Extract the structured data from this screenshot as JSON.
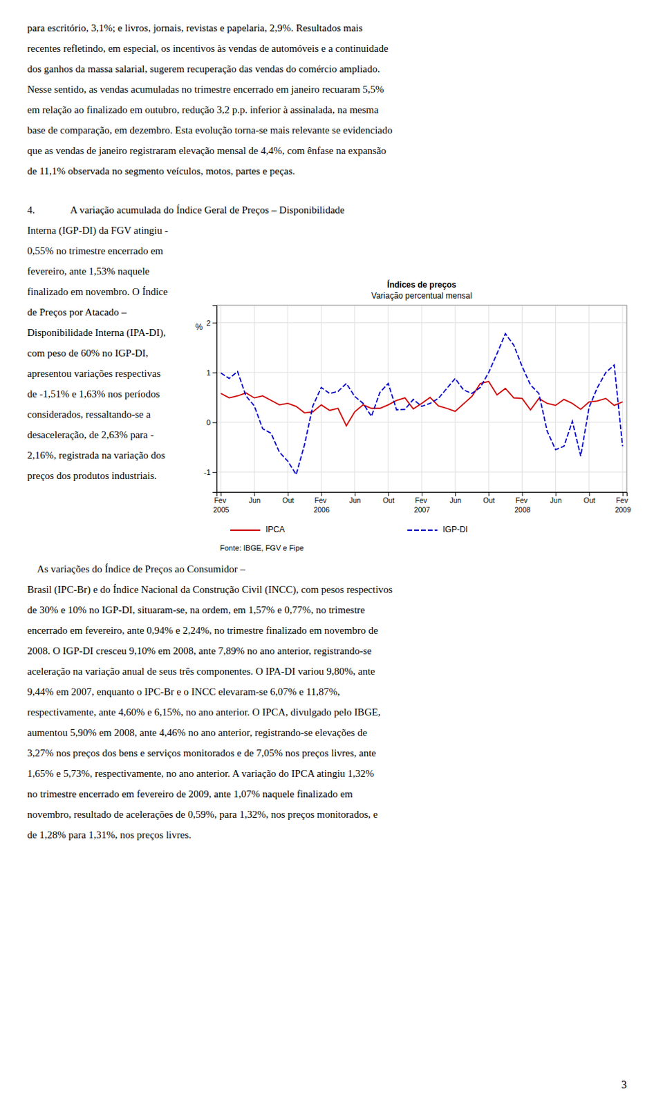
{
  "para1_lines": [
    "para escritório, 3,1%; e livros, jornais, revistas e papelaria, 2,9%. Resultados mais",
    "recentes refletindo, em especial, os incentivos às vendas de automóveis e a continuidade",
    "dos ganhos da massa salarial, sugerem recuperação das vendas do comércio ampliado.",
    "Nesse sentido, as vendas acumuladas no trimestre encerrado em janeiro recuaram 5,5%",
    "em relação ao finalizado em outubro, redução 3,2 p.p. inferior à assinalada, na mesma",
    "base de comparação, em dezembro. Esta evolução torna-se mais relevante se evidenciado",
    "que as vendas de janeiro registraram elevação mensal de 4,4%, com ênfase na expansão",
    "de 11,1% observada no segmento veículos, motos, partes e peças."
  ],
  "para4_header": "4.              A variação acumulada do Índice Geral de Preços – Disponibilidade",
  "para4_left_lines": [
    "Interna (IGP-DI) da FGV atingiu -",
    "0,55% no trimestre encerrado em",
    "fevereiro, ante 1,53% naquele",
    "finalizado em novembro. O Índice",
    "de Preços por Atacado –",
    "Disponibilidade Interna (IPA-DI),",
    "com peso de 60% no IGP-DI,",
    "apresentou variações respectivas",
    "de -1,51% e 1,63% nos períodos",
    "considerados, ressaltando-se a",
    "desaceleração, de 2,63% para -",
    "2,16%, registrada na variação dos",
    "preços dos produtos industriais."
  ],
  "para4_bottom_lines": [
    "    As variações do Índice de Preços ao Consumidor –",
    "Brasil (IPC-Br) e do Índice Nacional da Construção Civil (INCC), com pesos respectivos",
    "de 30% e 10% no IGP-DI, situaram-se, na ordem, em 1,57% e 0,77%, no trimestre",
    "encerrado em fevereiro, ante 0,94% e 2,24%, no trimestre finalizado em novembro de",
    "2008. O IGP-DI cresceu 9,10% em 2008, ante 7,89% no ano anterior, registrando-se",
    "aceleração na variação anual de seus três componentes. O IPA-DI variou 9,80%, ante",
    "9,44% em 2007, enquanto o IPC-Br e o INCC elevaram-se 6,07% e 11,87%,",
    "respectivamente, ante 4,60% e 6,15%, no ano anterior. O IPCA, divulgado pelo IBGE,",
    "aumentou 5,90% em 2008, ante 4,46% no ano anterior, registrando-se elevações de",
    "3,27% nos preços dos bens e serviços monitorados e de 7,05% nos preços livres, ante",
    "1,65% e 5,73%, respectivamente, no ano anterior. A variação do IPCA atingiu 1,32%",
    "no trimestre encerrado em fevereiro de 2009, ante 1,07% naquele finalizado em",
    "novembro, resultado de acelerações de 0,59%, para 1,32%, nos preços monitorados, e",
    "de 1,28% para 1,31%, nos preços livres."
  ],
  "page_number": "3",
  "chart_data": {
    "type": "line",
    "title": "Índices de preços",
    "subtitle": "Variação percentual mensal",
    "y_label": "%",
    "source": "Fonte: IBGE, FGV e Fipe",
    "categories": [
      "Fev 2005",
      null,
      null,
      null,
      "Jun",
      null,
      null,
      null,
      "Out",
      null,
      null,
      null,
      "Fev 2006",
      null,
      null,
      null,
      "Jun",
      null,
      null,
      null,
      "Out",
      null,
      null,
      null,
      "Fev 2007",
      null,
      null,
      null,
      "Jun",
      null,
      null,
      null,
      "Out",
      null,
      null,
      null,
      "Fev 2008",
      null,
      null,
      null,
      "Jun",
      null,
      null,
      null,
      "Out",
      null,
      null,
      null,
      "Fev 2009"
    ],
    "series": [
      {
        "name": "IPCA",
        "color": "#cc0000",
        "line_style": "solid",
        "values": [
          0.58,
          0.49,
          0.53,
          0.59,
          0.49,
          0.53,
          0.44,
          0.35,
          0.38,
          0.32,
          0.19,
          0.21,
          0.35,
          0.24,
          0.28,
          -0.07,
          0.21,
          0.35,
          0.28,
          0.28,
          0.35,
          0.44,
          0.49,
          0.27,
          0.38,
          0.5,
          0.33,
          0.28,
          0.22,
          0.37,
          0.52,
          0.78,
          0.82,
          0.55,
          0.68,
          0.49,
          0.48,
          0.25,
          0.48,
          0.38,
          0.34,
          0.46,
          0.38,
          0.26,
          0.41,
          0.43,
          0.48,
          0.34,
          0.41
        ]
      },
      {
        "name": "IGP-DI",
        "color": "#0000cc",
        "line_style": "dashed",
        "values": [
          0.99,
          0.88,
          1.02,
          0.53,
          0.33,
          -0.13,
          -0.22,
          -0.6,
          -0.78,
          -1.05,
          -0.45,
          0.33,
          0.7,
          0.58,
          0.62,
          0.78,
          0.52,
          0.38,
          0.12,
          0.6,
          0.78,
          0.25,
          0.26,
          0.46,
          0.32,
          0.38,
          0.48,
          0.68,
          0.88,
          0.65,
          0.58,
          0.7,
          1.0,
          1.38,
          1.78,
          1.55,
          1.12,
          0.75,
          0.58,
          -0.18,
          -0.55,
          -0.48,
          0.02,
          -0.68,
          0.3,
          0.7,
          1.0,
          1.15,
          -0.48
        ]
      }
    ],
    "ylim": [
      -1.4,
      2.35
    ],
    "yticks": [
      -1,
      0,
      1,
      2
    ],
    "grid": true,
    "legend": "bottom"
  }
}
